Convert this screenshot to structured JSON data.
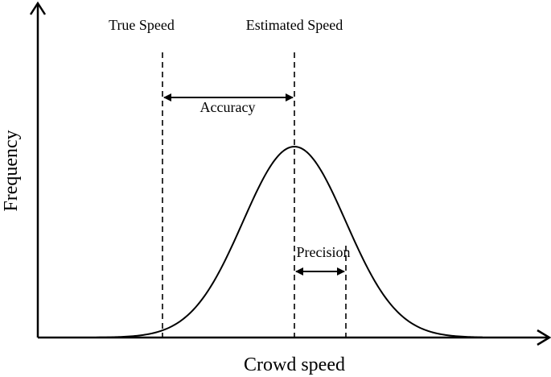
{
  "diagram": {
    "type": "bell-curve-concept-diagram",
    "labels": {
      "true_speed": "True Speed",
      "estimated_speed": "Estimated Speed",
      "accuracy": "Accuracy",
      "precision": "Precision",
      "x_axis": "Crowd speed",
      "y_axis": "Frequency"
    },
    "colors": {
      "stroke": "#000000",
      "background": "#ffffff"
    }
  }
}
